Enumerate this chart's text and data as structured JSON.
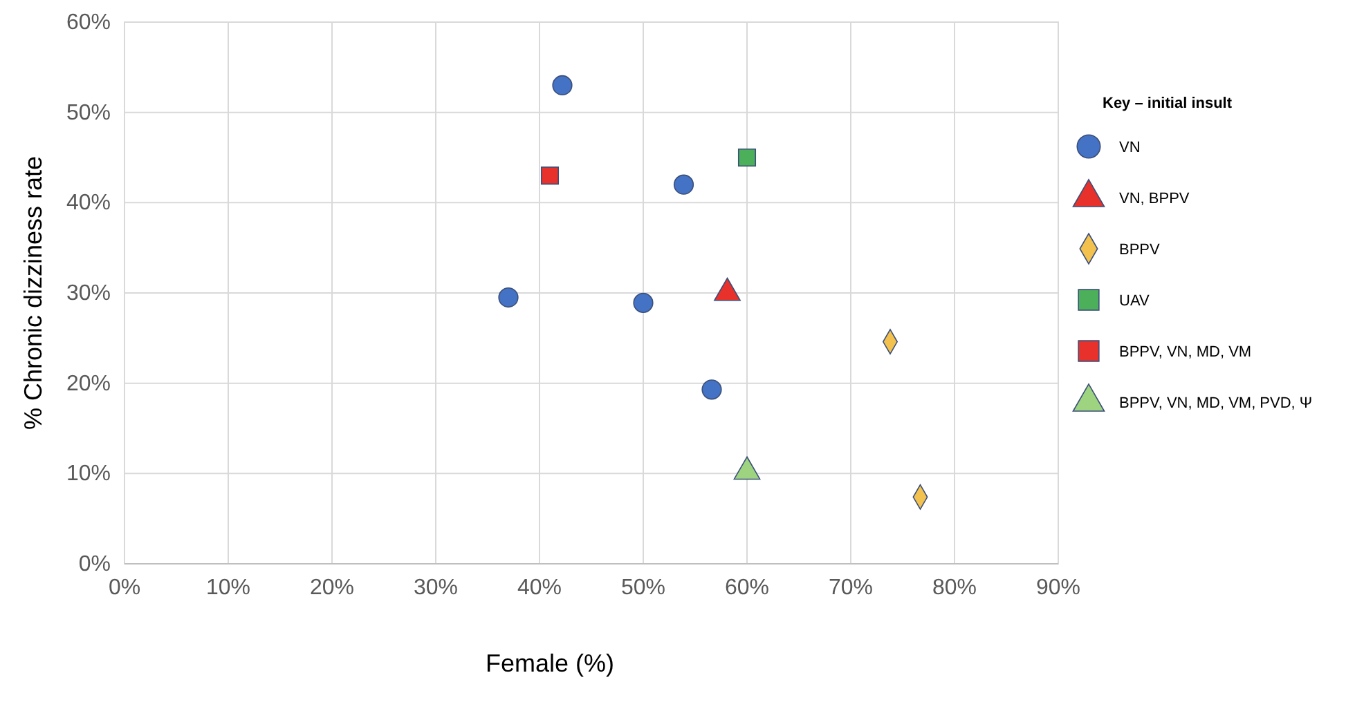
{
  "chart_data": {
    "type": "scatter",
    "xlabel": "Female (%)",
    "ylabel": "% Chronic dizziness rate",
    "legend_title": "Key – initial insult",
    "legend": "right",
    "grid": true,
    "xlim": [
      0,
      90
    ],
    "xticks": [
      {
        "value": 0,
        "label": "0%"
      },
      {
        "value": 10,
        "label": "10%"
      },
      {
        "value": 20,
        "label": "20%"
      },
      {
        "value": 30,
        "label": "30%"
      },
      {
        "value": 40,
        "label": "40%"
      },
      {
        "value": 50,
        "label": "50%"
      },
      {
        "value": 60,
        "label": "60%"
      },
      {
        "value": 70,
        "label": "70%"
      },
      {
        "value": 80,
        "label": "80%"
      },
      {
        "value": 90,
        "label": "90%"
      }
    ],
    "ylim": [
      0,
      60
    ],
    "yticks": [
      {
        "value": 0,
        "label": "0%"
      },
      {
        "value": 10,
        "label": "10%"
      },
      {
        "value": 20,
        "label": "20%"
      },
      {
        "value": 30,
        "label": "30%"
      },
      {
        "value": 40,
        "label": "40%"
      },
      {
        "value": 50,
        "label": "50%"
      },
      {
        "value": 60,
        "label": "60%"
      }
    ],
    "series": [
      {
        "name": "VN",
        "color": "#4472c4",
        "marker": "circle",
        "x": [
          42.2,
          37,
          53.9,
          50,
          56.6
        ],
        "values": [
          53,
          29.5,
          42,
          28.9,
          19.3
        ]
      },
      {
        "name": "VN, BPPV",
        "color": "#e8312a",
        "marker": "triangle",
        "x": [
          58.1
        ],
        "values": [
          30
        ]
      },
      {
        "name": "BPPV",
        "color": "#f2c14e",
        "marker": "diamond",
        "x": [
          73.8,
          76.7
        ],
        "values": [
          24.6,
          7.4
        ]
      },
      {
        "name": "UAV",
        "color": "#4caf5a",
        "marker": "square",
        "x": [
          60
        ],
        "values": [
          45
        ]
      },
      {
        "name": "BPPV, VN, MD, VM",
        "color": "#e8312a",
        "marker": "square",
        "x": [
          41
        ],
        "values": [
          43
        ]
      },
      {
        "name": "BPPV, VN, MD, VM, PVD, Ψ",
        "color": "#9ed47f",
        "marker": "triangle",
        "x": [
          60
        ],
        "values": [
          10.2
        ]
      }
    ]
  }
}
